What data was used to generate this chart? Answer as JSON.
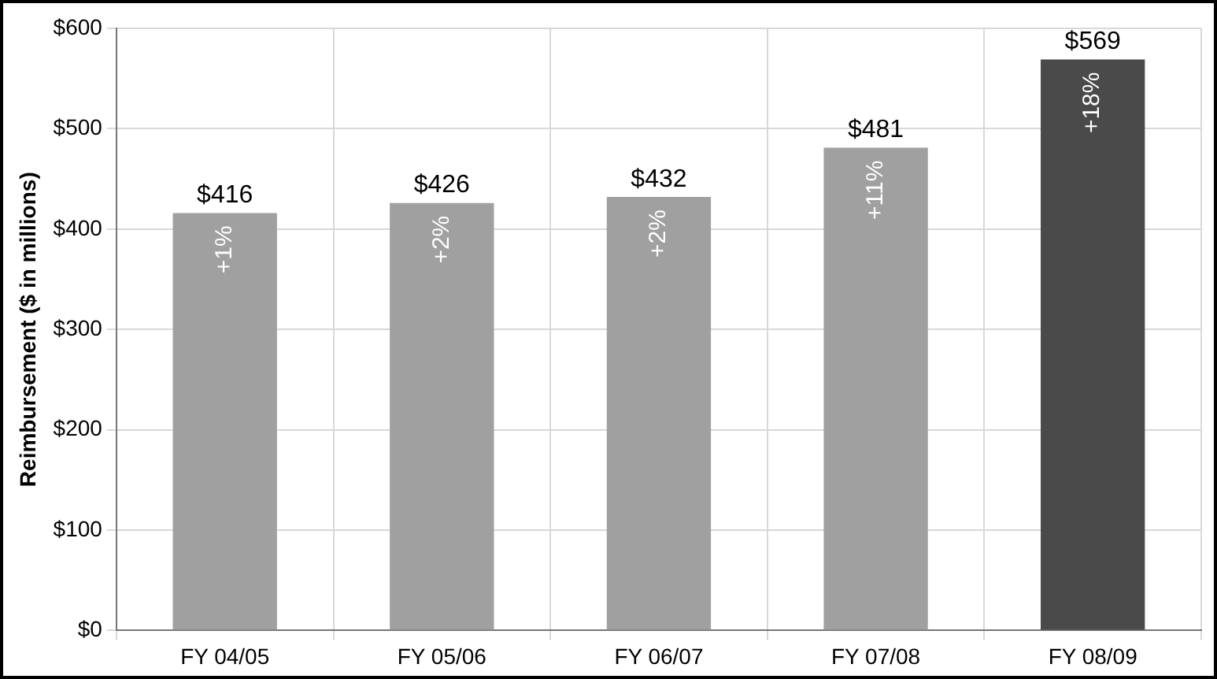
{
  "chart_data": {
    "type": "bar",
    "ylabel": "Reimbursement ($ in millions)",
    "categories": [
      "FY 04/05",
      "FY 05/06",
      "FY 06/07",
      "FY 07/08",
      "FY 08/09"
    ],
    "values": [
      416,
      426,
      432,
      481,
      569
    ],
    "colors": [
      "#a0a0a0",
      "#a0a0a0",
      "#a0a0a0",
      "#a0a0a0",
      "#4a4a4a"
    ],
    "value_labels": [
      "$416",
      "$426",
      "$432",
      "$481",
      "$569"
    ],
    "annotations": [
      {
        "text": "+1%",
        "x": "FY 04/05",
        "y": 416
      },
      {
        "text": "+2%",
        "x": "FY 05/06",
        "y": 426
      },
      {
        "text": "+2%",
        "x": "FY 06/07",
        "y": 432
      },
      {
        "text": "+11%",
        "x": "FY 07/08",
        "y": 481
      },
      {
        "text": "+18%",
        "x": "FY 08/09",
        "y": 569
      }
    ],
    "ylim": [
      0,
      600
    ],
    "yticks": [
      {
        "value": 0,
        "label": "$0"
      },
      {
        "value": 100,
        "label": "$100"
      },
      {
        "value": 200,
        "label": "$200"
      },
      {
        "value": 300,
        "label": "$300"
      },
      {
        "value": 400,
        "label": "$400"
      },
      {
        "value": 500,
        "label": "$500"
      },
      {
        "value": 600,
        "label": "$600"
      }
    ],
    "grid": true,
    "legend": false
  }
}
